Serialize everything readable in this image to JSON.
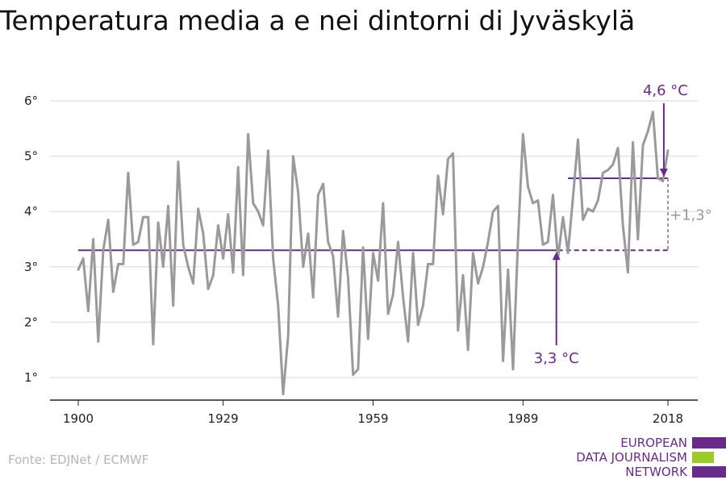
{
  "chart_data": {
    "type": "line",
    "title": "Temperatura media a e nei dintorni di Jyväskylä",
    "xlim": [
      1900,
      2018
    ],
    "ylim": [
      0.6,
      6.4
    ],
    "x_ticks": [
      {
        "value": 1900,
        "label": "1900"
      },
      {
        "value": 1929,
        "label": "1929"
      },
      {
        "value": 1959,
        "label": "1959"
      },
      {
        "value": 1989,
        "label": "1989"
      },
      {
        "value": 2018,
        "label": "2018"
      }
    ],
    "y_ticks": [
      {
        "value": 1,
        "label": "1°"
      },
      {
        "value": 2,
        "label": "2°"
      },
      {
        "value": 3,
        "label": "3°"
      },
      {
        "value": 4,
        "label": "4°"
      },
      {
        "value": 5,
        "label": "5°"
      },
      {
        "value": 6,
        "label": "6°"
      }
    ],
    "grid": true,
    "series": [
      {
        "color": "#9a9a9a",
        "x_start": 1900,
        "values": [
          2.95,
          3.15,
          2.2,
          3.5,
          1.65,
          3.3,
          3.85,
          2.55,
          3.05,
          3.05,
          4.7,
          3.4,
          3.45,
          3.9,
          3.9,
          1.6,
          3.8,
          3.0,
          4.1,
          2.3,
          4.9,
          3.4,
          3.0,
          2.7,
          4.05,
          3.6,
          2.6,
          2.85,
          3.75,
          3.15,
          3.95,
          2.9,
          4.8,
          2.85,
          5.4,
          4.15,
          4.0,
          3.75,
          5.1,
          3.15,
          2.3,
          0.7,
          1.75,
          5.0,
          4.35,
          3.0,
          3.6,
          2.45,
          4.3,
          4.5,
          3.45,
          3.2,
          2.1,
          3.65,
          2.8,
          1.05,
          1.15,
          3.35,
          1.7,
          3.25,
          2.75,
          4.15,
          2.15,
          2.5,
          3.45,
          2.45,
          1.65,
          3.25,
          1.95,
          2.3,
          3.05,
          3.05,
          4.65,
          3.95,
          4.95,
          5.05,
          1.85,
          2.85,
          1.5,
          3.25,
          2.7,
          3.0,
          3.45,
          4.0,
          4.1,
          1.3,
          2.95,
          1.15,
          3.5,
          5.4,
          4.45,
          4.15,
          4.2,
          3.4,
          3.45,
          4.3,
          3.15,
          3.9,
          3.25,
          4.25,
          5.3,
          3.85,
          4.05,
          4.0,
          4.2,
          4.7,
          4.75,
          4.85,
          5.15,
          3.75,
          2.9,
          5.25,
          3.5,
          5.2,
          5.45,
          5.8,
          4.6,
          4.55,
          5.1
        ]
      }
    ],
    "reference_lines": [
      {
        "value": 3.3,
        "x_from": 1900,
        "x_to": 1996,
        "x_dash_to": 2018,
        "color": "#6a2a8a"
      },
      {
        "value": 4.6,
        "x_from": 1998,
        "x_to": 2018,
        "color": "#6a2a8a"
      }
    ],
    "annotations": [
      {
        "text": "4,6 °C",
        "color": "#6a2a8a",
        "x": 2017.5,
        "y_text": 6.15,
        "arrow_to": 4.63
      },
      {
        "text": "3,3 °C",
        "color": "#6a2a8a",
        "x": 1996,
        "y_text": 1.3,
        "arrow_to": 3.27
      },
      {
        "text": "+1,3°",
        "color": "#9a9a9a",
        "x": 2018,
        "y_text": 3.95
      }
    ]
  },
  "source": "Fonte: EDJNet / ECMWF",
  "brand": {
    "lines": [
      "EUROPEAN",
      "DATA JOURNALISM",
      "NETWORK"
    ],
    "colors": {
      "purple": "#6a2a8a",
      "green": "#9ccc2c"
    }
  }
}
